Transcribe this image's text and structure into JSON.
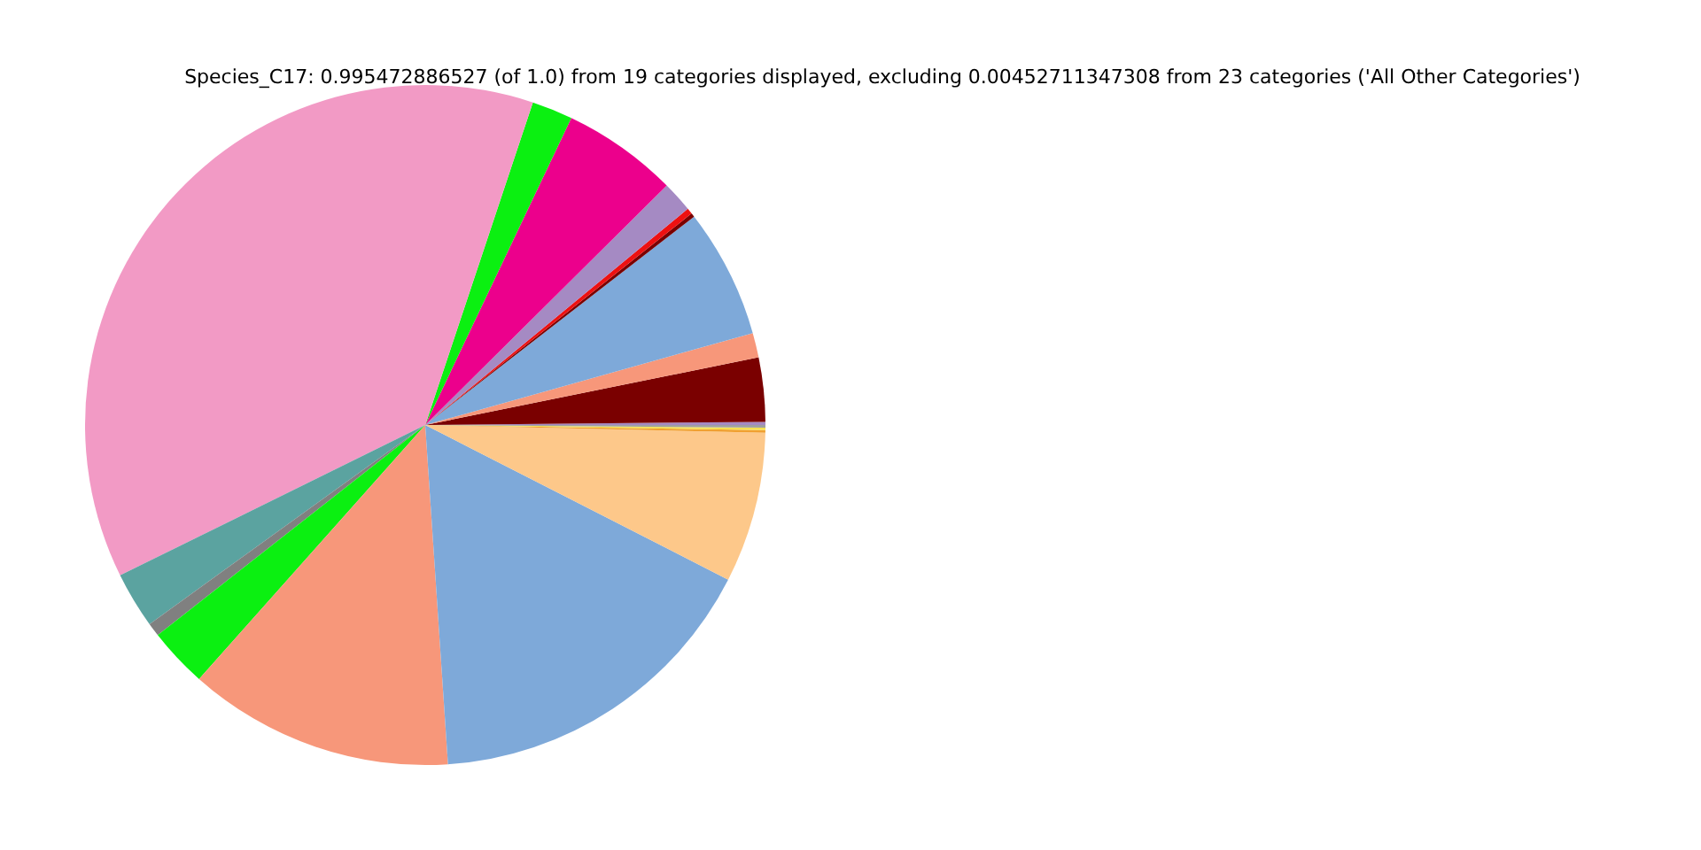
{
  "chart_data": {
    "type": "pie",
    "title": "Species_C17: 0.995472886527 (of 1.0) from 19 categories displayed, excluding 0.00452711347308 from 23 categories ('All Other Categories')",
    "categories": [
      null,
      null,
      null,
      null,
      null,
      null,
      null,
      null,
      null,
      null,
      null,
      null,
      null,
      null,
      null,
      null,
      null,
      null,
      null
    ],
    "values": [
      0.15,
      3.04,
      1.17,
      6.14,
      0.19,
      0.28,
      1.47,
      5.5,
      1.94,
      37.42,
      2.67,
      0.64,
      2.83,
      12.64,
      16.42,
      7.16,
      0.12,
      0.12,
      0.12
    ],
    "colors": [
      "#a58ac3",
      "#7a0000",
      "#f7977a",
      "#7ea9d9",
      "#7a0000",
      "#ee1111",
      "#a58ac3",
      "#ec008c",
      "#0bf011",
      "#f29ac5",
      "#5ba3a0",
      "#808080",
      "#0bf011",
      "#f7977a",
      "#7ea9d9",
      "#fdc88a",
      "#f0a030",
      "#f5e050",
      "#a0a0a0"
    ]
  }
}
